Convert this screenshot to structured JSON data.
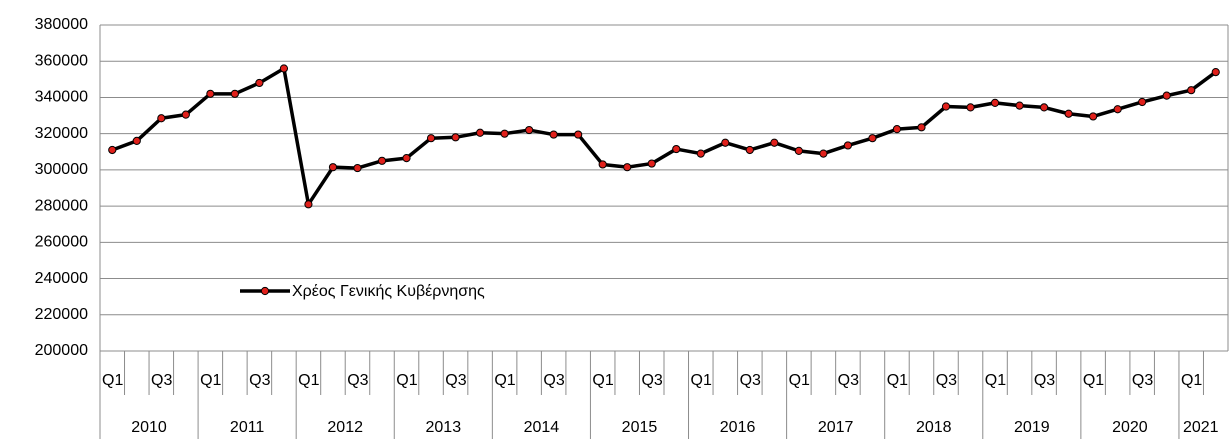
{
  "chart_data": {
    "type": "line",
    "categories": [
      "Q1",
      null,
      "Q3",
      null,
      "Q1",
      null,
      "Q3",
      null,
      "Q1",
      null,
      "Q3",
      null,
      "Q1",
      null,
      "Q3",
      null,
      "Q1",
      null,
      "Q3",
      null,
      "Q1",
      null,
      "Q3",
      null,
      "Q1",
      null,
      "Q3",
      null,
      "Q1",
      null,
      "Q3",
      null,
      "Q1",
      null,
      "Q3",
      null,
      "Q1",
      null,
      "Q3",
      null,
      "Q1",
      null,
      "Q3",
      null,
      "Q1",
      null
    ],
    "x_groups": [
      "2010",
      "2011",
      "2012",
      "2013",
      "2014",
      "2015",
      "2016",
      "2017",
      "2018",
      "2019",
      "2020",
      "2021"
    ],
    "series": [
      {
        "name": "Χρέος Γενικής Κυβέρνησης",
        "color": "#000000",
        "marker_color": "#e0201b",
        "values": [
          311000,
          316000,
          328500,
          330500,
          342000,
          342000,
          348000,
          356000,
          281000,
          301500,
          301000,
          305000,
          306500,
          317500,
          318000,
          320500,
          320000,
          322000,
          319500,
          319500,
          303000,
          301500,
          303500,
          311500,
          309000,
          315000,
          311000,
          315000,
          310500,
          309000,
          313500,
          317500,
          322500,
          323500,
          335000,
          334500,
          337000,
          335500,
          334500,
          331000,
          329500,
          333500,
          337500,
          341000,
          344000,
          354000
        ]
      }
    ],
    "ylim": [
      200000,
      380000
    ],
    "yticks": [
      200000,
      220000,
      240000,
      260000,
      280000,
      300000,
      320000,
      340000,
      360000,
      380000
    ],
    "grid": true
  }
}
